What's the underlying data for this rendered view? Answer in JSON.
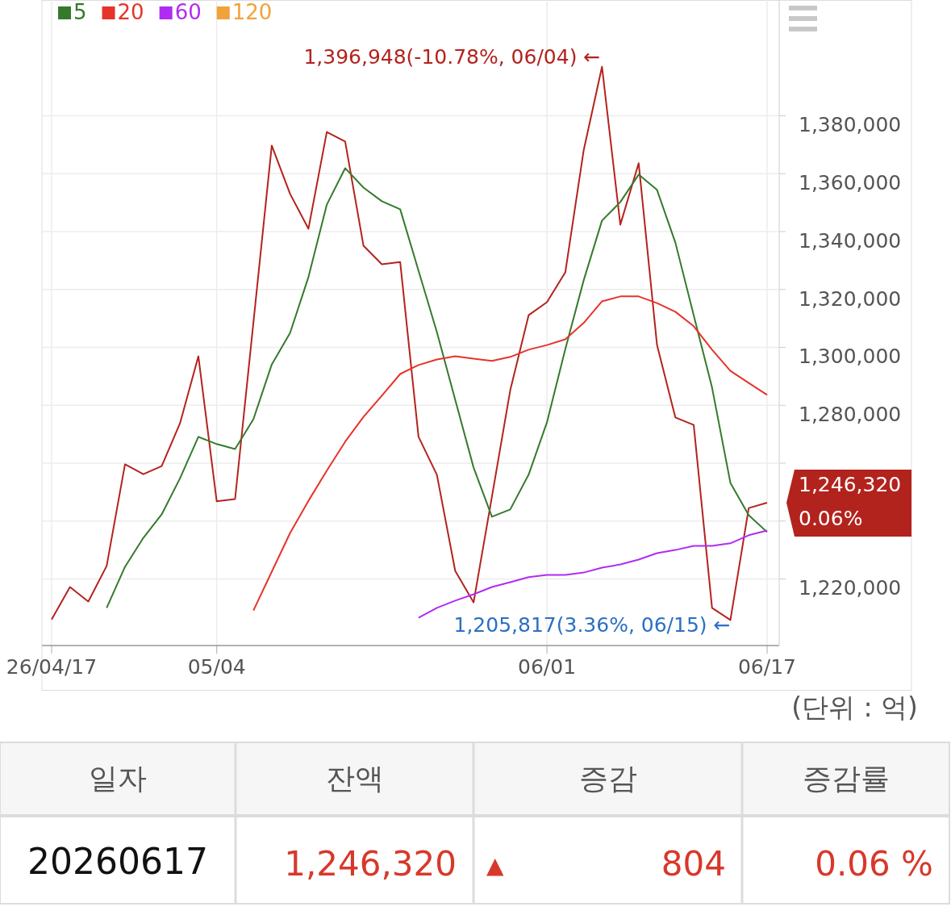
{
  "chart_data": {
    "type": "line",
    "categories": [
      "26/04/17",
      null,
      null,
      null,
      null,
      null,
      null,
      null,
      null,
      "05/04",
      null,
      null,
      null,
      null,
      null,
      null,
      null,
      null,
      null,
      null,
      null,
      null,
      null,
      null,
      null,
      null,
      null,
      "06/01",
      null,
      null,
      null,
      null,
      null,
      null,
      null,
      null,
      null,
      null,
      null,
      "06/17"
    ],
    "series": [
      {
        "color": "#b3231d",
        "values": [
          1206000,
          1217200,
          1212200,
          1224500,
          1259600,
          1256200,
          1259000,
          1273800,
          1296900,
          1246800,
          1247600,
          1308600,
          1369700,
          1353000,
          1341000,
          1374400,
          1371100,
          1335100,
          1328700,
          1329500,
          1269100,
          1256000,
          1222800,
          1211900,
          1248400,
          1285200,
          1311100,
          1315600,
          1325900,
          1368000,
          1396948,
          1342400,
          1363600,
          1300800,
          1275800,
          1273200,
          1210000,
          1205817,
          1244500,
          1246320
        ]
      },
      {
        "name": "5",
        "color": "#357a2c",
        "values": [
          null,
          null,
          null,
          1210000,
          1224200,
          1234200,
          1242300,
          1254800,
          1269100,
          1266600,
          1264900,
          1275200,
          1294100,
          1305000,
          1324300,
          1349300,
          1361900,
          1355200,
          1350500,
          1347700,
          1326500,
          1305300,
          1281900,
          1258500,
          1241500,
          1244000,
          1256000,
          1274100,
          1299400,
          1323100,
          1343800,
          1350200,
          1359700,
          1354400,
          1336200,
          1311100,
          1286100,
          1253200,
          1242000,
          1236200
        ]
      },
      {
        "name": "20",
        "color": "#e5342c",
        "values": [
          null,
          null,
          null,
          null,
          null,
          null,
          null,
          null,
          null,
          null,
          null,
          1209100,
          1222500,
          1235900,
          1247000,
          1257400,
          1267400,
          1276000,
          1283300,
          1290800,
          1293900,
          1295800,
          1296900,
          1296100,
          1295300,
          1296700,
          1299200,
          1300800,
          1302800,
          1308400,
          1315900,
          1317600,
          1317600,
          1315300,
          1312300,
          1307300,
          1299200,
          1291900,
          1287700,
          1283600
        ]
      },
      {
        "name": "60",
        "color": "#b02cf2",
        "values": [
          null,
          null,
          null,
          null,
          null,
          null,
          null,
          null,
          null,
          null,
          null,
          null,
          null,
          null,
          null,
          null,
          null,
          null,
          null,
          null,
          1206600,
          1210000,
          1212500,
          1214700,
          1217200,
          1218900,
          1220600,
          1221400,
          1221400,
          1222200,
          1223900,
          1225000,
          1226700,
          1228900,
          1230000,
          1231400,
          1231400,
          1232300,
          1235100,
          1236700
        ]
      },
      {
        "name": "120",
        "color": "#f2a23a",
        "values": [
          null,
          null,
          null,
          null,
          null,
          null,
          null,
          null,
          null,
          null,
          null,
          null,
          null,
          null,
          null,
          null,
          null,
          null,
          null,
          null,
          null,
          null,
          null,
          null,
          null,
          null,
          null,
          null,
          null,
          null,
          null,
          null,
          null,
          null,
          null,
          null,
          null,
          null,
          null,
          null
        ]
      }
    ],
    "ylim": [
      1197000,
      1420000
    ],
    "yticks": [
      {
        "value": 1220000,
        "label": "1,220,000"
      },
      {
        "value": 1240000,
        "label": null
      },
      {
        "value": 1260000,
        "label": null
      },
      {
        "value": 1280000,
        "label": "1,280,000"
      },
      {
        "value": 1300000,
        "label": "1,300,000"
      },
      {
        "value": 1320000,
        "label": "1,320,000"
      },
      {
        "value": 1340000,
        "label": "1,340,000"
      },
      {
        "value": 1360000,
        "label": "1,360,000"
      },
      {
        "value": 1380000,
        "label": "1,380,000"
      }
    ],
    "grid": true,
    "legend": "top left",
    "annotations": [
      "1,396,948(-10.78%, 06/04) ←",
      "1,205,817(3.36%, 06/15) ←",
      "1,246,320\n0.06%",
      "(단위 : 억)",
      "일자",
      "잔액",
      "증감",
      "증감률",
      "20260617",
      "1,246,320",
      "▲",
      "804",
      "0.06 %"
    ]
  }
}
